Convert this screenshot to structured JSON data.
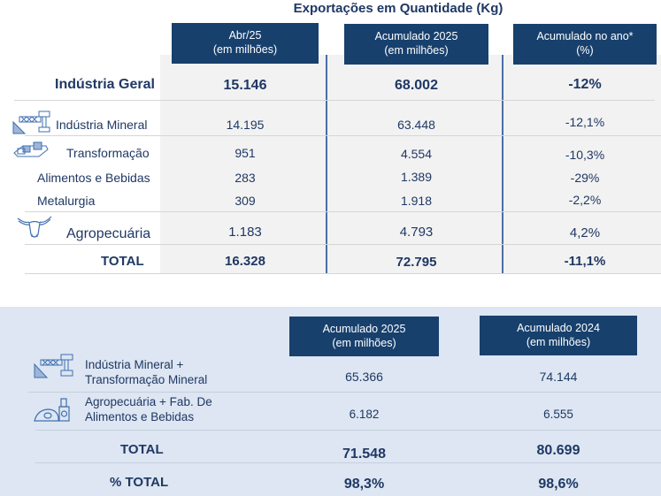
{
  "title": "Exportações em Quantidade (Kg)",
  "top_table": {
    "headers": [
      {
        "line1": "Abr/25",
        "line2": "(em milhões)"
      },
      {
        "line1": "Acumulado 2025",
        "line2": "(em milhões)"
      },
      {
        "line1": "Acumulado no ano*",
        "line2": "(%)"
      }
    ],
    "rows": [
      {
        "label": "Indústria Geral",
        "icon": "none",
        "values": [
          "15.146",
          "68.002",
          "-12%"
        ]
      },
      {
        "label": "Indústria Mineral",
        "icon": "mining-crane-icon",
        "values": [
          "14.195",
          "63.448",
          "-12,1%"
        ]
      },
      {
        "label": "Transformação",
        "icon": "conveyor-icon",
        "values": [
          "951",
          "4.554",
          "-10,3%"
        ]
      },
      {
        "label": "Alimentos e Bebidas",
        "icon": "none",
        "values": [
          "283",
          "1.389",
          "-29%"
        ]
      },
      {
        "label": "Metalurgia",
        "icon": "none",
        "values": [
          "309",
          "1.918",
          "-2,2%"
        ]
      },
      {
        "label": "Agropecuária",
        "icon": "bull-icon",
        "values": [
          "1.183",
          "4.793",
          "4,2%"
        ]
      },
      {
        "label": "TOTAL",
        "icon": "none",
        "values": [
          "16.328",
          "72.795",
          "-11,1%"
        ]
      }
    ]
  },
  "bottom_table": {
    "headers": [
      {
        "line1": "Acumulado 2025",
        "line2": "(em milhões)"
      },
      {
        "line1": "Acumulado 2024",
        "line2": "(em milhões)"
      }
    ],
    "rows": [
      {
        "label_line1": "Indústria Mineral +",
        "label_line2": "Transformação Mineral",
        "icon": "mining-crane-icon",
        "values": [
          "65.366",
          "74.144"
        ]
      },
      {
        "label_line1": "Agropecuária + Fab. De",
        "label_line2": "Alimentos e Bebidas",
        "icon": "food-processing-icon",
        "values": [
          "6.182",
          "6.555"
        ]
      },
      {
        "label": "TOTAL",
        "values": [
          "71.548",
          "80.699"
        ]
      },
      {
        "label": "% TOTAL",
        "values": [
          "98,3%",
          "98,6%"
        ]
      }
    ]
  },
  "colors": {
    "header_bg": "#17406d",
    "text": "#1f3864",
    "gray_bg": "#f2f2f2",
    "panel_bg": "#dde6f2",
    "icon": "#3f6fb0"
  }
}
